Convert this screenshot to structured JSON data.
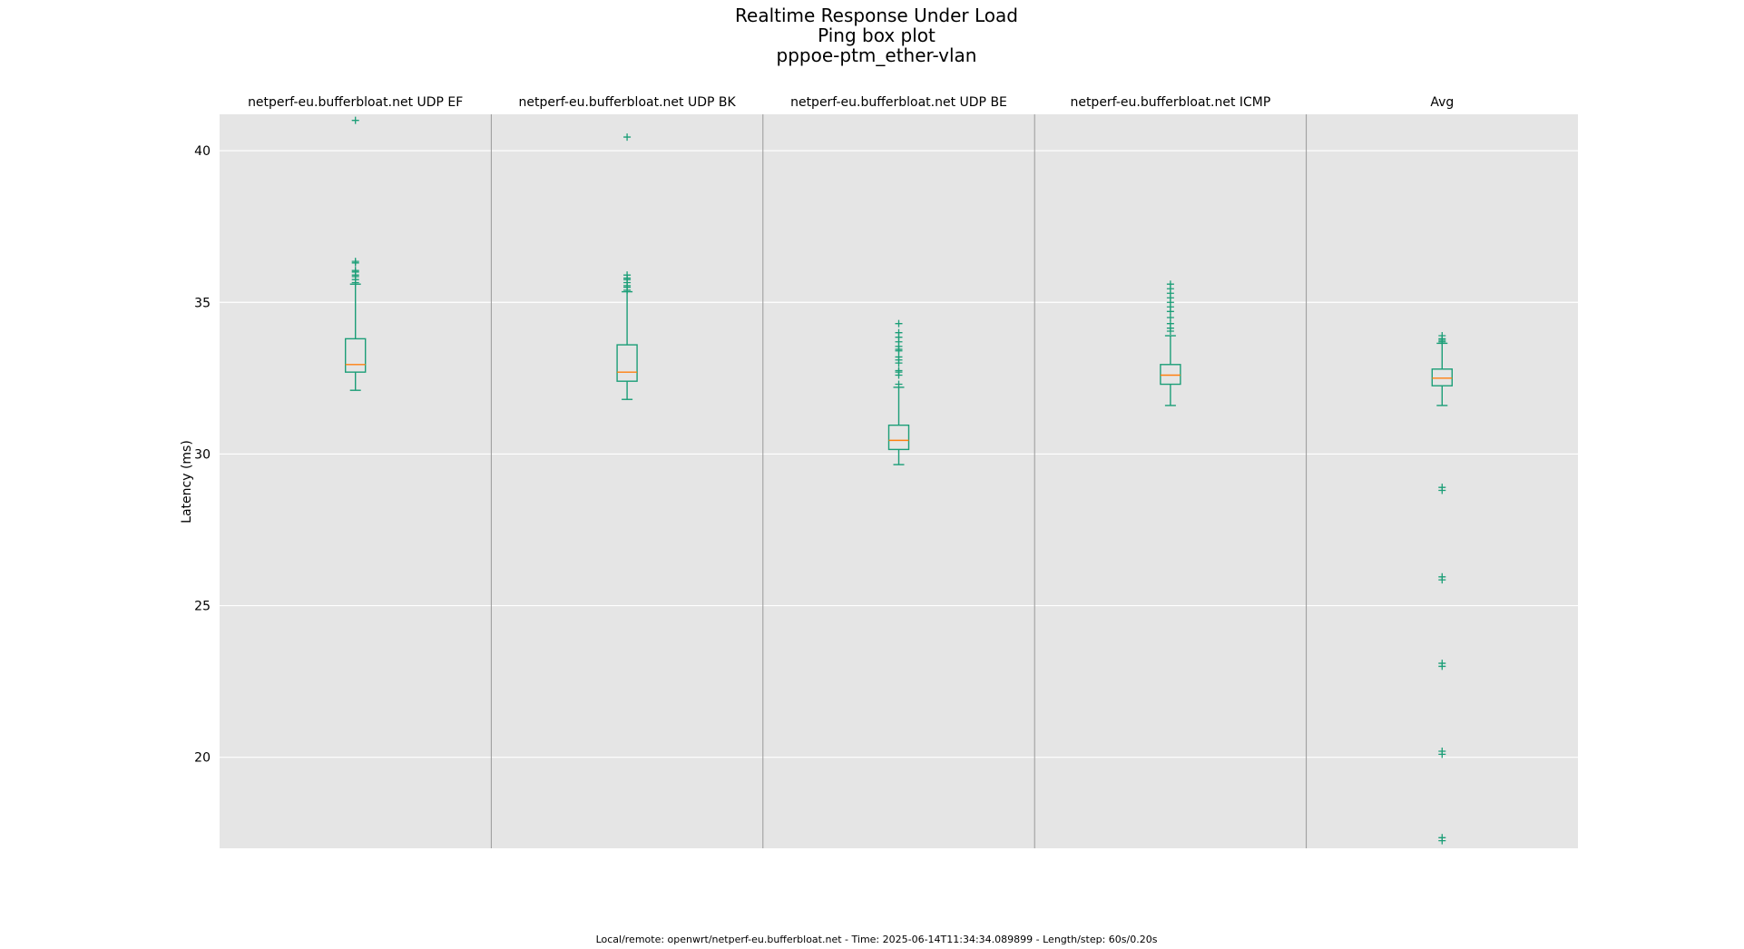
{
  "chart_data": {
    "type": "boxplot",
    "title": [
      "Realtime Response Under Load",
      "Ping box plot",
      "pppoe-ptm_ether-vlan"
    ],
    "ylabel": "Latency (ms)",
    "ylim": [
      17.0,
      41.2
    ],
    "yticks": [
      20,
      25,
      30,
      35,
      40
    ],
    "grid": true,
    "footer": "Local/remote: openwrt/netperf-eu.bufferbloat.net - Time: 2025-06-14T11:34:34.089899 - Length/step: 60s/0.20s",
    "colors": {
      "box": "#1b9e77",
      "median": "#ff7f0e",
      "plot_bg": "#e5e5e5",
      "grid": "#ffffff",
      "divider": "#999999"
    },
    "series": [
      {
        "name": "netperf-eu.bufferbloat.net UDP EF",
        "whisker_low": 32.1,
        "q1": 32.7,
        "median": 32.95,
        "q3": 33.8,
        "whisker_high": 35.6,
        "outliers": [
          35.65,
          35.75,
          35.85,
          35.9,
          36.0,
          36.05,
          36.3,
          36.35,
          41.0
        ]
      },
      {
        "name": "netperf-eu.bufferbloat.net UDP BK",
        "whisker_low": 31.8,
        "q1": 32.4,
        "median": 32.7,
        "q3": 33.6,
        "whisker_high": 35.35,
        "outliers": [
          35.4,
          35.5,
          35.55,
          35.65,
          35.75,
          35.8,
          35.9,
          40.45
        ]
      },
      {
        "name": "netperf-eu.bufferbloat.net UDP BE",
        "whisker_low": 29.65,
        "q1": 30.15,
        "median": 30.45,
        "q3": 30.95,
        "whisker_high": 32.2,
        "outliers": [
          32.3,
          32.6,
          32.7,
          32.75,
          33.0,
          33.1,
          33.2,
          33.4,
          33.45,
          33.55,
          33.7,
          33.85,
          34.0,
          34.3
        ]
      },
      {
        "name": "netperf-eu.bufferbloat.net ICMP",
        "whisker_low": 31.6,
        "q1": 32.3,
        "median": 32.6,
        "q3": 32.95,
        "whisker_high": 33.9,
        "outliers": [
          34.05,
          34.15,
          34.3,
          34.5,
          34.7,
          34.85,
          35.0,
          35.15,
          35.3,
          35.45,
          35.6
        ]
      },
      {
        "name": "Avg",
        "whisker_low": 31.6,
        "q1": 32.25,
        "median": 32.5,
        "q3": 32.8,
        "whisker_high": 33.65,
        "outliers": [
          33.7,
          33.75,
          33.8,
          33.9,
          28.8,
          28.9,
          25.85,
          25.95,
          23.0,
          23.1,
          20.1,
          20.2,
          17.25,
          17.35
        ]
      }
    ]
  }
}
